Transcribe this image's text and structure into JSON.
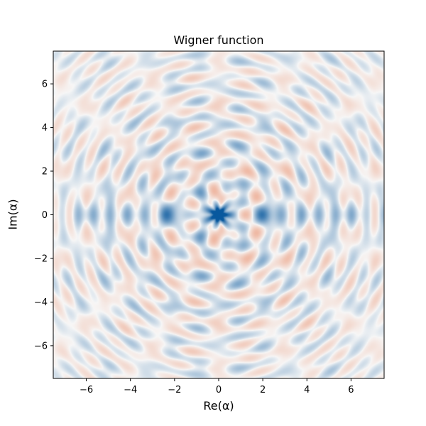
{
  "chart_data": {
    "type": "heatmap",
    "title": "Wigner function",
    "xlabel": "Re(α)",
    "ylabel": "Im(α)",
    "xlim": [
      -7.5,
      7.5
    ],
    "ylim": [
      -7.5,
      7.5
    ],
    "xticks": [
      -6,
      -4,
      -2,
      0,
      2,
      4,
      6
    ],
    "yticks": [
      -6,
      -4,
      -2,
      0,
      2,
      4,
      6
    ],
    "xtick_labels": [
      "−6",
      "−4",
      "−2",
      "0",
      "2",
      "4",
      "6"
    ],
    "ytick_labels": [
      "−6",
      "−4",
      "−2",
      "0",
      "2",
      "4",
      "6"
    ],
    "colormap": "diverging red-white-blue",
    "colors": {
      "negative": "#e46a3b",
      "zero": "#f7f7f7",
      "positive": "#08589e"
    },
    "peak": {
      "x": 0,
      "y": 0
    },
    "grid": false,
    "legend": "none"
  }
}
